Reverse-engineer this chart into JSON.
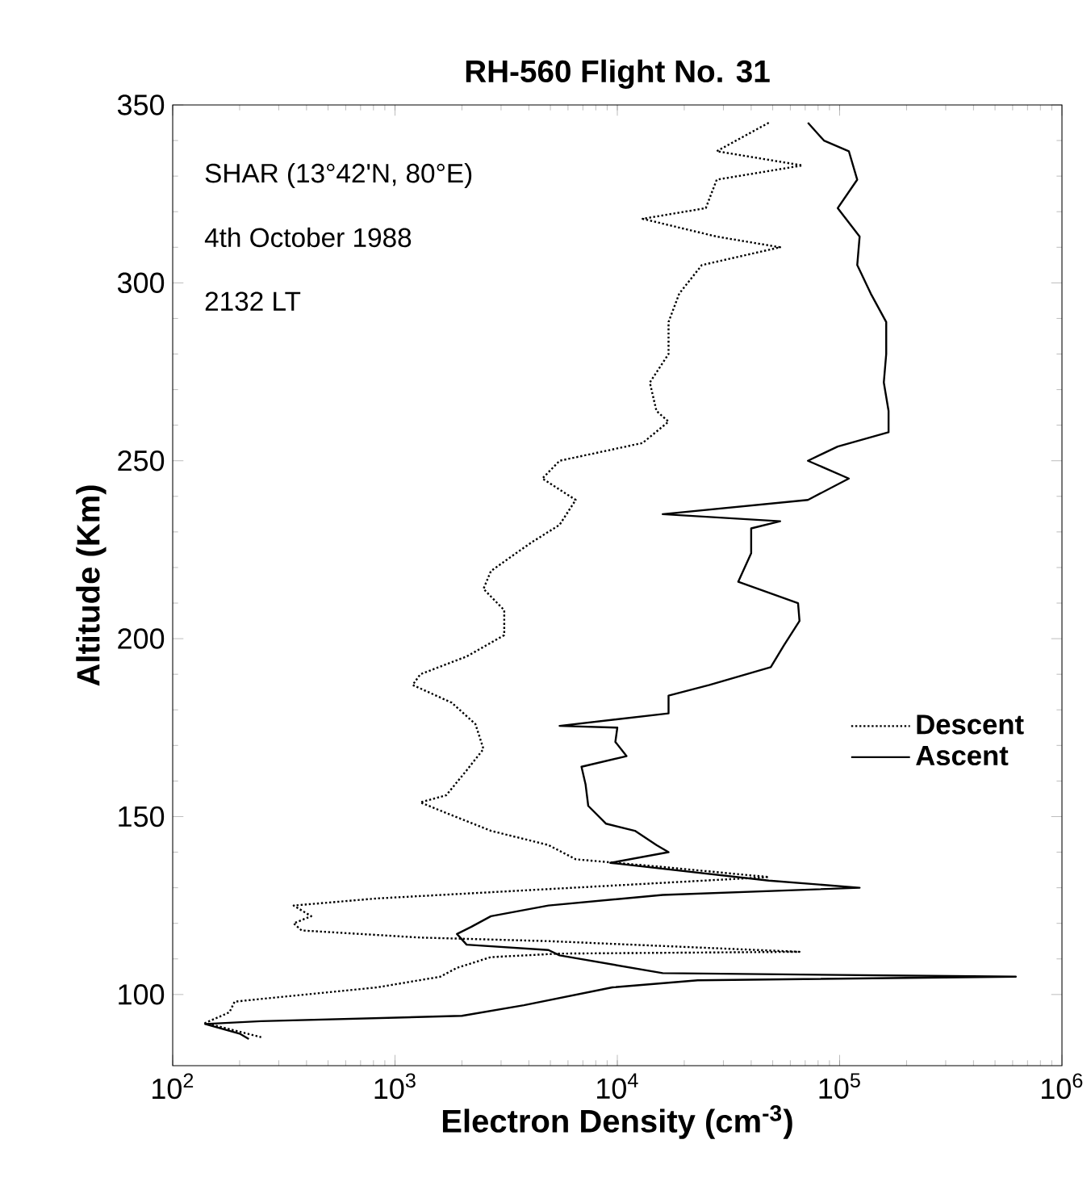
{
  "chart_data": {
    "type": "line",
    "title": "RH-560 Flight No. 31",
    "xlabel": "Electron Density (cm$^{-3}$)",
    "ylabel": "Altitude (Km)",
    "annotations": [
      "SHAR (13°42'N, 80°E)",
      "4th October 1988",
      "2132 LT"
    ],
    "log": "x",
    "xlim": [
      100,
      1000000
    ],
    "ylim": [
      80,
      350
    ],
    "xticks": [
      {
        "value": 100,
        "label": "10$^{2}$"
      },
      {
        "value": 1000,
        "label": "10$^{3}$"
      },
      {
        "value": 10000,
        "label": "10$^{4}$"
      },
      {
        "value": 100000,
        "label": "10$^{5}$"
      },
      {
        "value": 1000000,
        "label": "10$^{6}$"
      }
    ],
    "yticks": [
      100,
      150,
      200,
      250,
      300,
      350
    ],
    "legend": "right",
    "grid": false,
    "marker": "none",
    "series": [
      {
        "name": "Descent",
        "color": "#000000",
        "line_style": "dotted",
        "x": [
          48000,
          28000,
          68000,
          28000,
          25000,
          13000,
          28000,
          54000,
          24000,
          19000,
          17000,
          17000,
          14000,
          15000,
          17000,
          13000,
          5500,
          4600,
          6500,
          5500,
          4100,
          3500,
          2700,
          2500,
          3100,
          3100,
          2100,
          1300,
          1200,
          1800,
          2300,
          2500,
          2100,
          1700,
          1300,
          1700,
          2700,
          4900,
          6500,
          15000,
          48000,
          830,
          350,
          420,
          350,
          380,
          1300,
          4900,
          66000,
          5500,
          2700,
          1900,
          1600,
          830,
          190,
          180,
          140,
          250
        ],
        "values": [
          345,
          337,
          333,
          329,
          321,
          318,
          313,
          310,
          305,
          297,
          289,
          280,
          272,
          264,
          261,
          255,
          250,
          245,
          239,
          232,
          227,
          224,
          219,
          214,
          208,
          201,
          195,
          190,
          187,
          182,
          176,
          169,
          163,
          156,
          154,
          151,
          146,
          142,
          138,
          136,
          133,
          127,
          125,
          122,
          120,
          118,
          116,
          115,
          112,
          111.5,
          110.5,
          107.5,
          105,
          102,
          98,
          95,
          92,
          88
        ]
      },
      {
        "name": "Ascent",
        "color": "#000000",
        "line_style": "solid",
        "x": [
          72000,
          85000,
          110000,
          120000,
          98000,
          123000,
          120000,
          138000,
          162000,
          162000,
          158000,
          166000,
          166000,
          98000,
          72000,
          110000,
          72000,
          16000,
          54000,
          40000,
          40000,
          35000,
          65000,
          66000,
          56000,
          49000,
          26000,
          17000,
          17000,
          5500,
          10000,
          9800,
          11000,
          6900,
          7200,
          7400,
          8900,
          12000,
          15000,
          17000,
          9300,
          48000,
          123000,
          16000,
          4900,
          2700,
          2200,
          1900,
          2100,
          4900,
          5500,
          16000,
          620000,
          23000,
          9500,
          3800,
          2000,
          250,
          140,
          200,
          220
        ],
        "values": [
          345,
          340,
          337,
          329,
          321,
          313,
          305,
          297,
          289,
          280,
          272,
          264,
          258,
          254,
          250,
          245,
          239,
          235,
          233,
          231,
          224,
          216,
          210,
          205,
          198,
          192,
          187,
          184,
          179,
          175.5,
          175,
          171,
          167,
          164,
          159,
          153,
          148,
          146,
          142,
          140,
          137,
          132,
          130,
          128,
          125,
          122,
          119,
          117,
          114,
          112.5,
          111,
          106,
          105,
          104,
          102,
          97,
          94,
          92.5,
          91.7,
          89,
          87.5
        ]
      }
    ]
  }
}
